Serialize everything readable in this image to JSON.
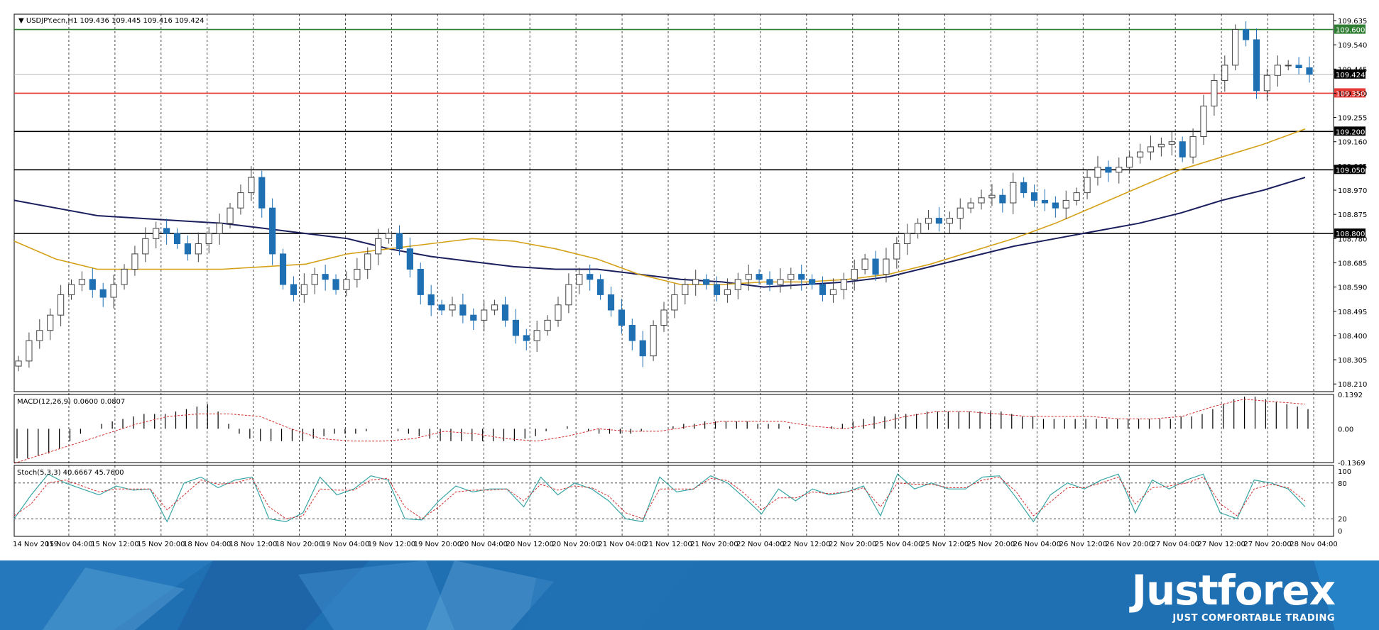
{
  "chart_data": {
    "type": "candlestick",
    "symbol_header": "USDJPY.ecn,H1",
    "ohlc_header": "109.436 109.445 109.416 109.424",
    "price_axis_ticks": [
      "109.635",
      "109.540",
      "109.445",
      "109.350",
      "109.255",
      "109.160",
      "109.065",
      "108.970",
      "108.875",
      "108.780",
      "108.685",
      "108.590",
      "108.495",
      "108.400",
      "108.305",
      "108.210"
    ],
    "price_range": [
      108.18,
      109.66
    ],
    "time_labels": [
      "14 Nov 2019",
      "15 Nov 04:00",
      "15 Nov 12:00",
      "15 Nov 20:00",
      "18 Nov 04:00",
      "18 Nov 12:00",
      "18 Nov 20:00",
      "19 Nov 04:00",
      "19 Nov 12:00",
      "19 Nov 20:00",
      "20 Nov 04:00",
      "20 Nov 12:00",
      "20 Nov 20:00",
      "21 Nov 04:00",
      "21 Nov 12:00",
      "21 Nov 20:00",
      "22 Nov 04:00",
      "22 Nov 12:00",
      "22 Nov 20:00",
      "25 Nov 04:00",
      "25 Nov 12:00",
      "25 Nov 20:00",
      "26 Nov 04:00",
      "26 Nov 12:00",
      "26 Nov 20:00",
      "27 Nov 04:00",
      "27 Nov 12:00",
      "27 Nov 20:00",
      "28 Nov 04:00"
    ],
    "horizontal_levels": [
      {
        "value": 109.6,
        "label": "109.600",
        "color": "#2e7d32"
      },
      {
        "value": 109.424,
        "label": "109.424",
        "color": "#000000"
      },
      {
        "value": 109.35,
        "label": "109.350",
        "color": "#e53935"
      },
      {
        "value": 109.2,
        "label": "109.200",
        "color": "#000000"
      },
      {
        "value": 109.05,
        "label": "109.050",
        "color": "#000000"
      },
      {
        "value": 108.8,
        "label": "108.800",
        "color": "#000000"
      }
    ],
    "close_series": [
      108.3,
      108.38,
      108.42,
      108.48,
      108.56,
      108.6,
      108.62,
      108.58,
      108.55,
      108.6,
      108.66,
      108.72,
      108.78,
      108.82,
      108.8,
      108.76,
      108.72,
      108.76,
      108.8,
      108.84,
      108.9,
      108.96,
      109.02,
      108.9,
      108.72,
      108.6,
      108.56,
      108.6,
      108.64,
      108.62,
      108.58,
      108.62,
      108.66,
      108.72,
      108.78,
      108.8,
      108.74,
      108.66,
      108.56,
      108.52,
      108.5,
      108.52,
      108.48,
      108.46,
      108.5,
      108.52,
      108.46,
      108.4,
      108.38,
      108.42,
      108.46,
      108.52,
      108.6,
      108.64,
      108.62,
      108.56,
      108.5,
      108.44,
      108.38,
      108.32,
      108.44,
      108.5,
      108.56,
      108.6,
      108.62,
      108.6,
      108.56,
      108.58,
      108.62,
      108.64,
      108.62,
      108.6,
      108.62,
      108.64,
      108.62,
      108.6,
      108.56,
      108.58,
      108.62,
      108.66,
      108.7,
      108.64,
      108.7,
      108.76,
      108.8,
      108.84,
      108.86,
      108.84,
      108.86,
      108.9,
      108.92,
      108.94,
      108.95,
      108.92,
      109.0,
      108.96,
      108.93,
      108.92,
      108.9,
      108.93,
      108.96,
      109.02,
      109.06,
      109.04,
      109.06,
      109.1,
      109.12,
      109.14,
      109.15,
      109.16,
      109.1,
      109.18,
      109.3,
      109.4,
      109.46,
      109.6,
      109.56,
      109.36,
      109.42,
      109.46,
      109.46,
      109.45,
      109.424
    ],
    "ema_short": [
      108.77,
      108.7,
      108.66,
      108.66,
      108.66,
      108.66,
      108.67,
      108.68,
      108.72,
      108.74,
      108.76,
      108.78,
      108.77,
      108.74,
      108.7,
      108.64,
      108.6,
      108.6,
      108.61,
      108.61,
      108.62,
      108.64,
      108.68,
      108.73,
      108.78,
      108.84,
      108.91,
      108.98,
      109.05,
      109.1,
      109.15,
      109.21
    ],
    "ema_long": [
      108.93,
      108.9,
      108.87,
      108.86,
      108.85,
      108.84,
      108.82,
      108.8,
      108.78,
      108.74,
      108.71,
      108.69,
      108.67,
      108.66,
      108.66,
      108.64,
      108.62,
      108.61,
      108.59,
      108.6,
      108.61,
      108.63,
      108.67,
      108.71,
      108.75,
      108.78,
      108.81,
      108.84,
      108.88,
      108.93,
      108.97,
      109.02
    ],
    "macd": {
      "label": "MACD(12,26,9) 0.0600 0.0807",
      "axis_ticks": [
        "0.1392",
        "0.00",
        "-0.1369"
      ],
      "range": [
        -0.1369,
        0.1392
      ],
      "hist": [
        -0.12,
        -0.12,
        -0.11,
        -0.1,
        -0.08,
        -0.05,
        -0.02,
        0.0,
        0.02,
        0.03,
        0.04,
        0.05,
        0.06,
        0.06,
        0.06,
        0.07,
        0.08,
        0.09,
        0.1,
        0.07,
        0.02,
        -0.02,
        -0.04,
        -0.05,
        -0.05,
        -0.05,
        -0.05,
        -0.05,
        -0.04,
        -0.03,
        -0.02,
        -0.02,
        -0.02,
        -0.01,
        0.0,
        0.0,
        -0.01,
        -0.02,
        -0.03,
        -0.04,
        -0.05,
        -0.05,
        -0.05,
        -0.05,
        -0.05,
        -0.05,
        -0.05,
        -0.05,
        -0.04,
        -0.03,
        -0.01,
        0.0,
        0.01,
        0.0,
        -0.01,
        -0.02,
        -0.02,
        -0.02,
        -0.02,
        -0.01,
        0.0,
        0.0,
        0.01,
        0.02,
        0.02,
        0.03,
        0.03,
        0.03,
        0.03,
        0.03,
        0.02,
        0.02,
        0.02,
        0.01,
        0.0,
        0.0,
        0.0,
        0.01,
        0.02,
        0.03,
        0.04,
        0.05,
        0.05,
        0.06,
        0.06,
        0.06,
        0.07,
        0.07,
        0.07,
        0.07,
        0.07,
        0.07,
        0.07,
        0.07,
        0.06,
        0.05,
        0.05,
        0.04,
        0.04,
        0.04,
        0.04,
        0.04,
        0.04,
        0.04,
        0.04,
        0.04,
        0.04,
        0.04,
        0.04,
        0.04,
        0.05,
        0.05,
        0.06,
        0.08,
        0.1,
        0.12,
        0.13,
        0.13,
        0.12,
        0.11,
        0.1,
        0.09,
        0.08
      ],
      "signal": [
        -0.14,
        -0.1,
        -0.06,
        -0.02,
        0.02,
        0.05,
        0.06,
        0.06,
        0.05,
        0.0,
        -0.04,
        -0.05,
        -0.05,
        -0.04,
        -0.01,
        -0.02,
        -0.04,
        -0.05,
        -0.03,
        0.0,
        -0.01,
        -0.01,
        0.01,
        0.03,
        0.03,
        0.03,
        0.01,
        0.0,
        0.02,
        0.05,
        0.07,
        0.07,
        0.06,
        0.05,
        0.05,
        0.05,
        0.04,
        0.04,
        0.05,
        0.09,
        0.12,
        0.11,
        0.1
      ]
    },
    "stochastic": {
      "label": "Stoch(5,3,3) 40.6667 45.7600",
      "axis_ticks": [
        "100",
        "80",
        "20",
        "0"
      ],
      "range": [
        0,
        100
      ],
      "levels": [
        80,
        20
      ],
      "main": [
        20,
        60,
        95,
        80,
        70,
        60,
        75,
        68,
        70,
        15,
        80,
        90,
        72,
        85,
        90,
        20,
        15,
        30,
        90,
        60,
        70,
        92,
        85,
        20,
        18,
        50,
        75,
        65,
        70,
        70,
        40,
        90,
        60,
        80,
        70,
        50,
        20,
        15,
        90,
        65,
        70,
        92,
        80,
        55,
        28,
        70,
        50,
        70,
        60,
        65,
        75,
        25,
        95,
        70,
        80,
        70,
        70,
        90,
        92,
        55,
        15,
        60,
        80,
        70,
        85,
        95,
        30,
        85,
        70,
        85,
        95,
        30,
        20,
        85,
        80,
        70,
        40
      ],
      "signal": [
        25,
        45,
        80,
        85,
        75,
        65,
        70,
        70,
        70,
        35,
        60,
        85,
        78,
        80,
        88,
        40,
        20,
        25,
        70,
        68,
        68,
        85,
        88,
        40,
        20,
        40,
        65,
        68,
        68,
        70,
        50,
        78,
        68,
        75,
        72,
        58,
        30,
        20,
        70,
        70,
        70,
        88,
        84,
        62,
        35,
        55,
        55,
        65,
        62,
        65,
        72,
        40,
        80,
        78,
        78,
        72,
        72,
        85,
        90,
        65,
        25,
        48,
        72,
        72,
        80,
        90,
        45,
        72,
        75,
        80,
        90,
        45,
        25,
        70,
        78,
        72,
        50
      ]
    },
    "grid": true
  },
  "brand": {
    "name": "Justforex",
    "tagline": "JUST COMFORTABLE TRADING",
    "color": "#1f6fb3"
  }
}
